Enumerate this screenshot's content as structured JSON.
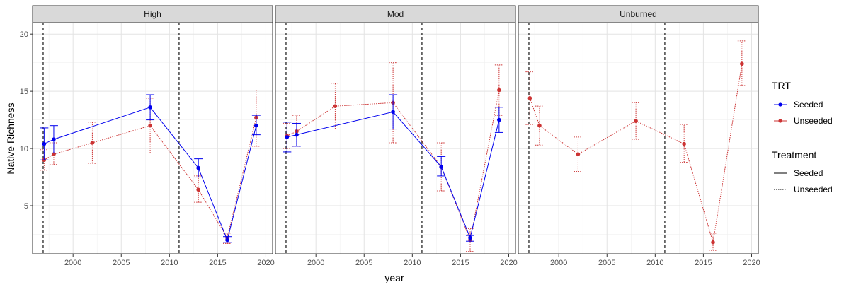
{
  "chart_data": {
    "type": "line",
    "xlabel": "year",
    "ylabel": "Native Richness",
    "xlim": [
      1995.8,
      2020.7
    ],
    "ylim": [
      0.8,
      21.0
    ],
    "x_ticks": [
      2000,
      2005,
      2010,
      2015,
      2020
    ],
    "y_ticks": [
      5,
      10,
      15,
      20
    ],
    "grid": true,
    "vlines": [
      1996.9,
      2011
    ],
    "colors": {
      "Seeded": "#0000ee",
      "Unseeded": "#cc3333"
    },
    "legend": {
      "position": "right",
      "trt_title": "TRT",
      "trt_items": [
        "Seeded",
        "Unseeded"
      ],
      "treatment_title": "Treatment",
      "treatment_items": [
        "Seeded",
        "Unseeded"
      ]
    },
    "panels": [
      {
        "label": "High",
        "series": [
          {
            "name": "Seeded",
            "points": [
              {
                "x": 1997,
                "y": 10.4,
                "lo": 9.0,
                "hi": 11.8
              },
              {
                "x": 1998,
                "y": 10.8,
                "lo": 9.6,
                "hi": 12.0
              },
              {
                "x": 2008,
                "y": 13.6,
                "lo": 12.5,
                "hi": 14.7
              },
              {
                "x": 2013,
                "y": 8.3,
                "lo": 7.5,
                "hi": 9.1
              },
              {
                "x": 2016,
                "y": 2.0,
                "lo": 1.8,
                "hi": 2.3
              },
              {
                "x": 2019,
                "y": 12.0,
                "lo": 11.2,
                "hi": 12.9
              }
            ]
          },
          {
            "name": "Unseeded",
            "points": [
              {
                "x": 1997,
                "y": 9.0,
                "lo": 8.1,
                "hi": 9.9
              },
              {
                "x": 1998,
                "y": 9.5,
                "lo": 8.6,
                "hi": 10.5
              },
              {
                "x": 2002,
                "y": 10.5,
                "lo": 8.7,
                "hi": 12.3
              },
              {
                "x": 2008,
                "y": 12.0,
                "lo": 9.6,
                "hi": 14.4
              },
              {
                "x": 2013,
                "y": 6.4,
                "lo": 5.3,
                "hi": 7.6
              },
              {
                "x": 2016,
                "y": 2.2,
                "lo": 1.7,
                "hi": 2.6
              },
              {
                "x": 2019,
                "y": 12.7,
                "lo": 10.2,
                "hi": 15.1
              }
            ]
          }
        ]
      },
      {
        "label": "Mod",
        "series": [
          {
            "name": "Seeded",
            "points": [
              {
                "x": 1997,
                "y": 11.0,
                "lo": 9.7,
                "hi": 12.3
              },
              {
                "x": 1998,
                "y": 11.2,
                "lo": 10.2,
                "hi": 12.2
              },
              {
                "x": 2008,
                "y": 13.2,
                "lo": 11.7,
                "hi": 14.7
              },
              {
                "x": 2013,
                "y": 8.4,
                "lo": 7.6,
                "hi": 9.3
              },
              {
                "x": 2016,
                "y": 2.2,
                "lo": 1.9,
                "hi": 2.4
              },
              {
                "x": 2019,
                "y": 12.5,
                "lo": 11.4,
                "hi": 13.6
              }
            ]
          },
          {
            "name": "Unseeded",
            "points": [
              {
                "x": 1997,
                "y": 11.1,
                "lo": 10.0,
                "hi": 12.2
              },
              {
                "x": 1998,
                "y": 11.5,
                "lo": 10.2,
                "hi": 12.9
              },
              {
                "x": 2002,
                "y": 13.7,
                "lo": 11.7,
                "hi": 15.7
              },
              {
                "x": 2008,
                "y": 14.0,
                "lo": 10.5,
                "hi": 17.5
              },
              {
                "x": 2013,
                "y": 8.4,
                "lo": 6.3,
                "hi": 10.5
              },
              {
                "x": 2016,
                "y": 2.0,
                "lo": 1.0,
                "hi": 3.0
              },
              {
                "x": 2019,
                "y": 15.1,
                "lo": 12.9,
                "hi": 17.3
              }
            ]
          }
        ]
      },
      {
        "label": "Unburned",
        "series": [
          {
            "name": "Unseeded",
            "points": [
              {
                "x": 1997,
                "y": 14.4,
                "lo": 12.1,
                "hi": 16.7
              },
              {
                "x": 1998,
                "y": 12.0,
                "lo": 10.3,
                "hi": 13.7
              },
              {
                "x": 2002,
                "y": 9.5,
                "lo": 8.0,
                "hi": 11.0
              },
              {
                "x": 2008,
                "y": 12.4,
                "lo": 10.8,
                "hi": 14.0
              },
              {
                "x": 2013,
                "y": 10.4,
                "lo": 8.8,
                "hi": 12.1
              },
              {
                "x": 2016,
                "y": 1.8,
                "lo": 1.1,
                "hi": 2.6
              },
              {
                "x": 2019,
                "y": 17.4,
                "lo": 15.5,
                "hi": 19.4
              }
            ]
          }
        ]
      }
    ]
  }
}
